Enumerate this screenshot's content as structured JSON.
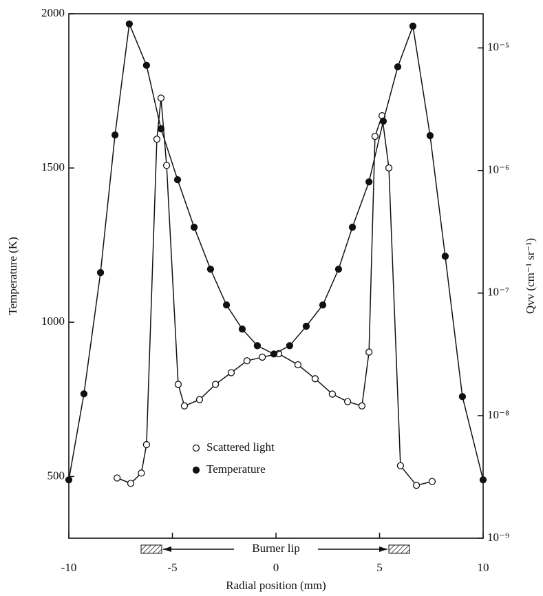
{
  "chart_data": {
    "type": "line",
    "x_label": "Radial position (mm)",
    "y_label": "Temperature (K)",
    "y2_label": "Qvv (cm⁻¹ sr⁻¹)",
    "annotation": "Burner lip",
    "xlim": [
      -10,
      10
    ],
    "xticks": [
      -10,
      -5,
      0,
      5,
      10
    ],
    "ylim": [
      300,
      2000
    ],
    "yticks": [
      500,
      1000,
      1500,
      2000
    ],
    "y2lim": [
      1e-09,
      1.9e-05
    ],
    "y2_log": true,
    "y2ticks": [
      {
        "value": 1e-09,
        "label": "10⁻⁹"
      },
      {
        "value": 1e-08,
        "label": "10⁻⁸"
      },
      {
        "value": 1e-07,
        "label": "10⁻⁷"
      },
      {
        "value": 1e-06,
        "label": "10⁻⁶"
      },
      {
        "value": 1e-05,
        "label": "10⁻⁵"
      }
    ],
    "series": [
      {
        "name": "Scattered light",
        "color": "#111111",
        "marker": "open",
        "axis": "y2",
        "x": [
          -7.67,
          -7.01,
          -6.5,
          -6.25,
          -5.75,
          -5.55,
          -5.28,
          -4.72,
          -4.42,
          -3.69,
          -2.92,
          -2.16,
          -1.4,
          -0.66,
          0.13,
          1.06,
          1.89,
          2.72,
          3.46,
          4.15,
          4.49,
          4.78,
          5.12,
          5.45,
          6.01,
          6.78,
          7.54
        ],
        "values": [
          3.1e-09,
          2.8e-09,
          3.4e-09,
          5.8e-09,
          1.8e-06,
          3.9e-06,
          1.1e-06,
          1.8e-08,
          1.2e-08,
          1.35e-08,
          1.8e-08,
          2.24e-08,
          2.8e-08,
          3e-08,
          3.2e-08,
          2.6e-08,
          2e-08,
          1.5e-08,
          1.3e-08,
          1.2e-08,
          3.3e-08,
          1.9e-06,
          2.8e-06,
          1.05e-06,
          3.9e-09,
          2.7e-09,
          2.9e-09
        ]
      },
      {
        "name": "Temperature",
        "color": "#111111",
        "marker": "filled",
        "x": [
          -10,
          -9.27,
          -8.47,
          -7.77,
          -7.08,
          -6.25,
          -5.55,
          -4.75,
          -3.95,
          -3.16,
          -2.39,
          -1.63,
          -0.9,
          -0.1,
          0.66,
          1.46,
          2.26,
          3.02,
          3.69,
          4.49,
          5.18,
          5.88,
          6.61,
          7.44,
          8.17,
          9.0,
          10
        ],
        "values": [
          489,
          768,
          1161,
          1607,
          1967,
          1833,
          1627,
          1462,
          1308,
          1172,
          1056,
          978,
          924,
          897,
          924,
          987,
          1056,
          1172,
          1308,
          1455,
          1652,
          1828,
          1960,
          1605,
          1214,
          759,
          489
        ]
      }
    ]
  }
}
